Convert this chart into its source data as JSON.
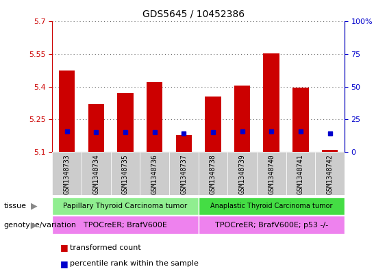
{
  "title": "GDS5645 / 10452386",
  "samples": [
    "GSM1348733",
    "GSM1348734",
    "GSM1348735",
    "GSM1348736",
    "GSM1348737",
    "GSM1348738",
    "GSM1348739",
    "GSM1348740",
    "GSM1348741",
    "GSM1348742"
  ],
  "transformed_count": [
    5.475,
    5.32,
    5.37,
    5.42,
    5.18,
    5.355,
    5.405,
    5.555,
    5.395,
    5.11
  ],
  "percentile_rank": [
    16,
    15,
    15,
    15,
    14,
    15,
    16,
    16,
    16,
    14
  ],
  "ymin": 5.1,
  "ymax": 5.7,
  "yticks_left": [
    5.1,
    5.25,
    5.4,
    5.55,
    5.7
  ],
  "yticks_right": [
    0,
    25,
    50,
    75,
    100
  ],
  "bar_color": "#cc0000",
  "dot_color": "#0000cc",
  "bar_width": 0.55,
  "bg_color": "#ffffff",
  "plot_bg": "#ffffff",
  "left_tick_color": "#cc0000",
  "right_tick_color": "#0000cc",
  "tissue_groups": [
    {
      "label": "Papillary Thyroid Carcinoma tumor",
      "start": 0,
      "end": 5,
      "color": "#90EE90"
    },
    {
      "label": "Anaplastic Thyroid Carcinoma tumor",
      "start": 5,
      "end": 10,
      "color": "#44dd44"
    }
  ],
  "genotype_groups": [
    {
      "label": "TPOCreER; BrafV600E",
      "start": 0,
      "end": 5,
      "color": "#ee82ee"
    },
    {
      "label": "TPOCreER; BrafV600E; p53 -/-",
      "start": 5,
      "end": 10,
      "color": "#ee82ee"
    }
  ],
  "tissue_label": "tissue",
  "genotype_label": "genotype/variation",
  "legend_items": [
    {
      "color": "#cc0000",
      "label": "transformed count"
    },
    {
      "color": "#0000cc",
      "label": "percentile rank within the sample"
    }
  ],
  "grid_color": "#000000",
  "grid_alpha": 0.6,
  "xticklabel_bg": "#cccccc"
}
